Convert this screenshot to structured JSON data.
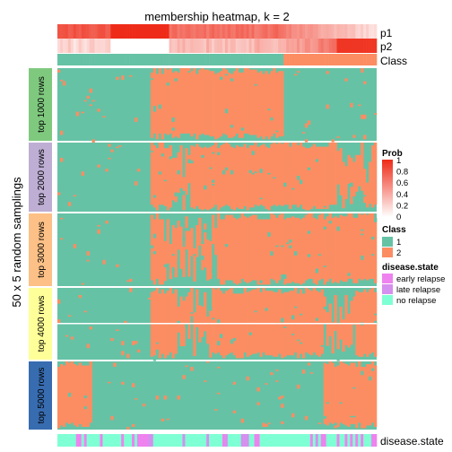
{
  "chart_data": {
    "type": "heatmap",
    "title": "membership heatmap, k = 2",
    "ylabel": "50 x 5 random samplings",
    "n_samples": 120,
    "annotation_rows": [
      "p1",
      "p2",
      "Class"
    ],
    "bottom_annotation": "disease.state",
    "row_groups": [
      {
        "label": "top 1000 rows",
        "color": "#7fc97f"
      },
      {
        "label": "top 2000 rows",
        "color": "#beaed4"
      },
      {
        "label": "top 3000 rows",
        "color": "#fdc086"
      },
      {
        "label": "top 4000 rows",
        "color": "#ffff99"
      },
      {
        "label": "top 5000 rows",
        "color": "#386cb0"
      }
    ],
    "legends": {
      "prob": {
        "title": "Prob",
        "ticks": [
          "1",
          "0.8",
          "0.6",
          "0.4",
          "0.2",
          "0"
        ],
        "low_color": "#ffffff",
        "high_color": "#ee2b18"
      },
      "class": {
        "title": "Class",
        "items": [
          {
            "label": "1",
            "color": "#66c2a5"
          },
          {
            "label": "2",
            "color": "#fc8d62"
          }
        ]
      },
      "disease_state": {
        "title": "disease.state",
        "items": [
          {
            "label": "early relapse",
            "color": "#ee82ee"
          },
          {
            "label": "late relapse",
            "color": "#d58fee"
          },
          {
            "label": "no relapse",
            "color": "#7fffd4"
          }
        ]
      }
    },
    "class_colors": {
      "1": "#66c2a5",
      "2": "#fc8d62"
    },
    "class_sizes": {
      "1": 85,
      "2": 35
    },
    "membership_blocks": [
      {
        "group": 0,
        "class2_cols": [
          [
            35,
            85
          ]
        ],
        "class1_islands": [
          [
            97,
            104
          ]
        ]
      },
      {
        "group": 1,
        "class2_cols": [
          [
            35,
            120
          ]
        ],
        "class1_islands": [
          [
            43,
            50
          ],
          [
            105,
            118
          ]
        ]
      },
      {
        "group": 2,
        "class2_cols": [
          [
            35,
            120
          ]
        ],
        "class1_islands": [
          [
            40,
            60
          ]
        ]
      },
      {
        "group": 3,
        "class2_cols": [
          [
            35,
            120
          ]
        ],
        "class1_islands": [
          [
            45,
            58
          ],
          [
            100,
            112
          ]
        ]
      },
      {
        "group": 4,
        "class2_cols": [
          [
            0,
            13
          ],
          [
            100,
            120
          ]
        ],
        "class1_islands": [
          [
            13,
            35
          ]
        ]
      }
    ]
  }
}
